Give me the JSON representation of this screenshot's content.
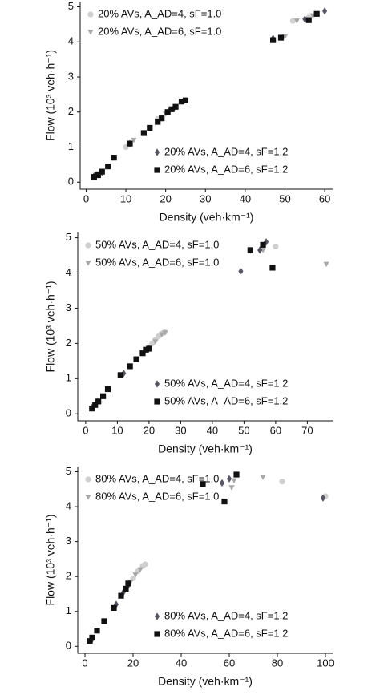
{
  "chart_data": [
    {
      "type": "scatter",
      "xlabel": "Density (veh·km⁻¹)",
      "ylabel": "Flow (10³ veh·h⁻¹)",
      "xlim": [
        -1.5,
        62
      ],
      "xticks": [
        0,
        10,
        20,
        30,
        40,
        50,
        60
      ],
      "ylim": [
        -0.2,
        5.15
      ],
      "yticks": [
        0,
        1,
        2,
        3,
        4,
        5
      ],
      "series": [
        {
          "name": "20% AVs, A_AD=4, sF=1.0",
          "color": "#cfcfcf",
          "marker": "circle",
          "legend": "upper left",
          "x": [
            3,
            10,
            18,
            25,
            52,
            56
          ],
          "values": [
            0.22,
            1.0,
            1.8,
            2.35,
            4.6,
            4.7
          ]
        },
        {
          "name": "20% AVs, A_AD=6, sF=1.0",
          "color": "#a8a8a8",
          "marker": "triangle",
          "legend": "upper left",
          "x": [
            3,
            12,
            20,
            50,
            53,
            57
          ],
          "values": [
            0.25,
            1.2,
            1.95,
            4.15,
            4.6,
            4.75
          ]
        },
        {
          "name": "20% AVs, A_AD=4, sF=1.2",
          "color": "#555566",
          "marker": "diamond",
          "legend": "lower right",
          "x": [
            2,
            4,
            11,
            21,
            22,
            24.5,
            47,
            55,
            60
          ],
          "values": [
            0.18,
            0.28,
            1.1,
            2.05,
            2.1,
            2.32,
            4.1,
            4.65,
            4.88
          ]
        },
        {
          "name": "20% AVs, A_AD=6, sF=1.2",
          "color": "#111111",
          "marker": "square",
          "legend": "lower right",
          "x": [
            2,
            3,
            4,
            5.5,
            7,
            11,
            14.5,
            16,
            18,
            19,
            20.5,
            21.5,
            22.5,
            24,
            25,
            47,
            49,
            56,
            58
          ],
          "values": [
            0.15,
            0.2,
            0.3,
            0.45,
            0.7,
            1.1,
            1.4,
            1.55,
            1.72,
            1.82,
            2.0,
            2.08,
            2.15,
            2.3,
            2.33,
            4.05,
            4.12,
            4.62,
            4.8
          ]
        }
      ]
    },
    {
      "type": "scatter",
      "xlabel": "Density (veh·km⁻¹)",
      "ylabel": "Flow (10³ veh·h⁻¹)",
      "xlim": [
        -2.5,
        78
      ],
      "xticks": [
        0,
        10,
        20,
        30,
        40,
        50,
        60,
        70
      ],
      "ylim": [
        -0.2,
        5.15
      ],
      "yticks": [
        0,
        1,
        2,
        3,
        4,
        5
      ],
      "series": [
        {
          "name": "50% AVs, A_AD=4, sF=1.0",
          "color": "#cfcfcf",
          "marker": "circle",
          "legend": "upper left",
          "x": [
            21,
            22,
            23,
            24,
            25,
            60
          ],
          "values": [
            2.0,
            2.1,
            2.2,
            2.28,
            2.32,
            4.75
          ]
        },
        {
          "name": "50% AVs, A_AD=6, sF=1.0",
          "color": "#a8a8a8",
          "marker": "triangle",
          "legend": "upper left",
          "x": [
            22,
            24,
            25,
            52,
            56,
            76
          ],
          "values": [
            2.05,
            2.25,
            2.3,
            4.62,
            4.65,
            4.25
          ]
        },
        {
          "name": "50% AVs, A_AD=4, sF=1.2",
          "color": "#555566",
          "marker": "diamond",
          "legend": "lower right",
          "x": [
            2,
            12,
            20,
            49,
            55,
            57
          ],
          "values": [
            0.18,
            1.15,
            1.85,
            4.05,
            4.65,
            4.88
          ]
        },
        {
          "name": "50% AVs, A_AD=6, sF=1.2",
          "color": "#111111",
          "marker": "square",
          "legend": "lower right",
          "x": [
            2,
            3,
            4,
            5.5,
            7,
            11,
            14,
            16,
            18,
            19,
            20,
            52,
            56,
            59
          ],
          "values": [
            0.15,
            0.25,
            0.35,
            0.5,
            0.7,
            1.1,
            1.35,
            1.55,
            1.72,
            1.82,
            1.85,
            4.65,
            4.8,
            4.15
          ]
        }
      ]
    },
    {
      "type": "scatter",
      "xlabel": "Density (veh·km⁻¹)",
      "ylabel": "Flow (10³ veh·h⁻¹)",
      "xlim": [
        -3,
        103
      ],
      "xticks": [
        0,
        20,
        40,
        60,
        80,
        100
      ],
      "ylim": [
        -0.2,
        5.15
      ],
      "yticks": [
        0,
        1,
        2,
        3,
        4,
        5
      ],
      "series": [
        {
          "name": "80% AVs, A_AD=4, sF=1.0",
          "color": "#cfcfcf",
          "marker": "circle",
          "legend": "upper left",
          "x": [
            20,
            22,
            24,
            25,
            82,
            100
          ],
          "values": [
            1.95,
            2.15,
            2.3,
            2.35,
            4.72,
            4.3
          ]
        },
        {
          "name": "80% AVs, A_AD=6, sF=1.0",
          "color": "#a8a8a8",
          "marker": "triangle",
          "legend": "upper left",
          "x": [
            19,
            21,
            23,
            61,
            62,
            74
          ],
          "values": [
            1.85,
            2.05,
            2.2,
            4.55,
            4.75,
            4.85
          ]
        },
        {
          "name": "80% AVs, A_AD=4, sF=1.2",
          "color": "#555566",
          "marker": "diamond",
          "legend": "lower right",
          "x": [
            3,
            13,
            16,
            18,
            57,
            60,
            99
          ],
          "values": [
            0.2,
            1.2,
            1.55,
            1.75,
            4.68,
            4.8,
            4.25
          ]
        },
        {
          "name": "80% AVs, A_AD=6, sF=1.2",
          "color": "#111111",
          "marker": "square",
          "legend": "lower right",
          "x": [
            2,
            3,
            5,
            8,
            12,
            15,
            17,
            18,
            49,
            58,
            63
          ],
          "values": [
            0.15,
            0.25,
            0.45,
            0.72,
            1.1,
            1.45,
            1.65,
            1.8,
            4.65,
            4.15,
            4.92
          ]
        }
      ]
    }
  ]
}
